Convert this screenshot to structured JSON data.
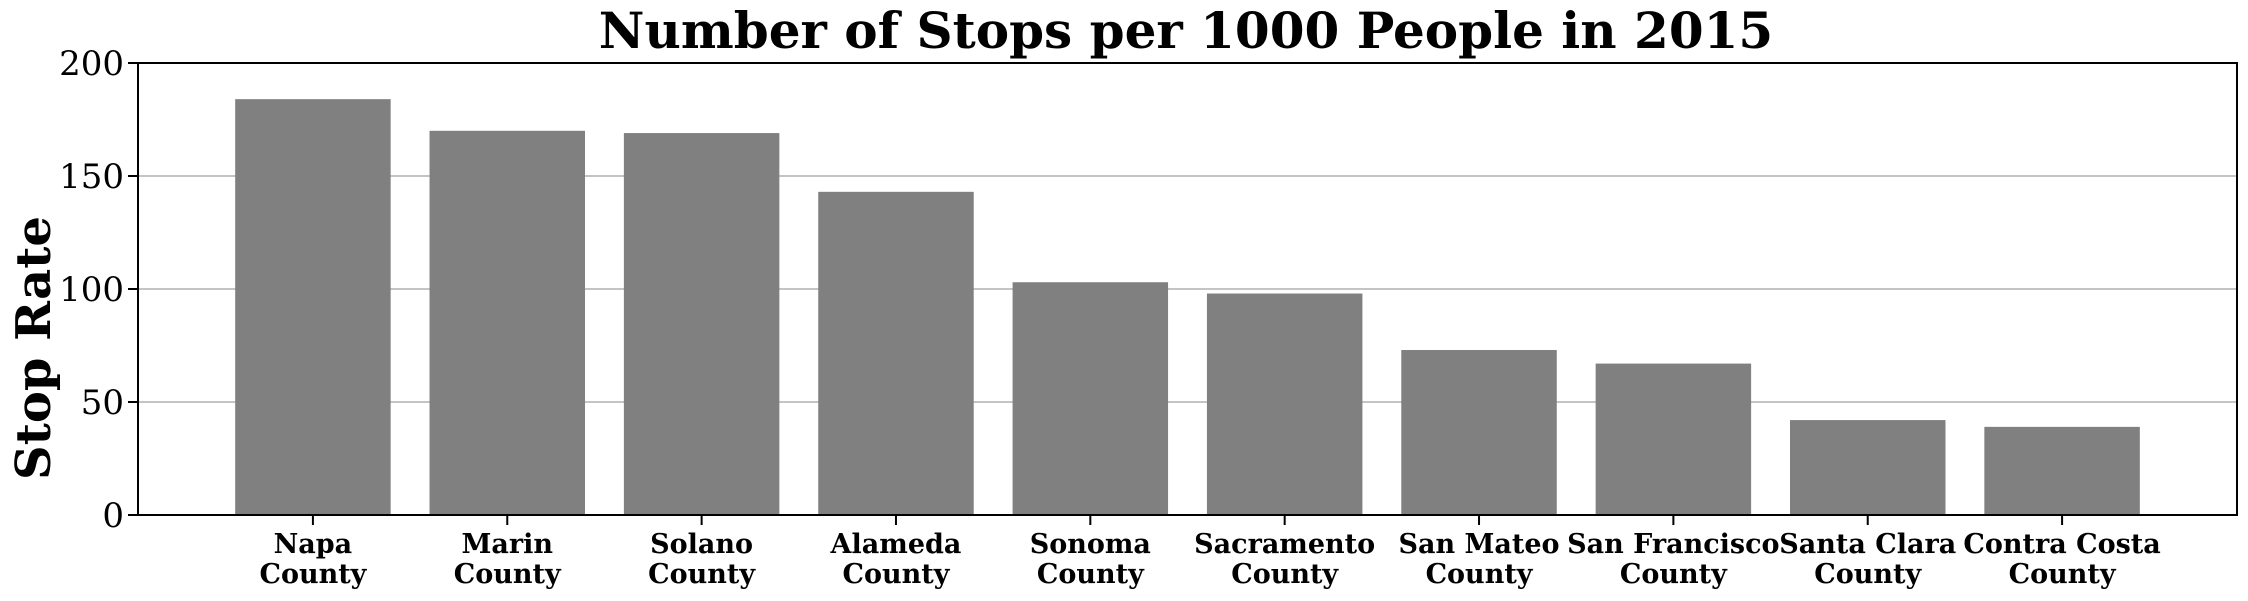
{
  "chart_data": {
    "type": "bar",
    "title": "Number of Stops per 1000 People in 2015",
    "xlabel": "",
    "ylabel": "Stop Rate",
    "ylim": [
      0,
      200
    ],
    "yticks": [
      "0",
      "50",
      "100",
      "150",
      "200"
    ],
    "grid": "horizontal",
    "categories": [
      [
        "Napa",
        "County"
      ],
      [
        "Marin",
        "County"
      ],
      [
        "Solano",
        "County"
      ],
      [
        "Alameda",
        "County"
      ],
      [
        "Sonoma",
        "County"
      ],
      [
        "Sacramento",
        "County"
      ],
      [
        "San Mateo",
        "County"
      ],
      [
        "San Francisco",
        "County"
      ],
      [
        "Santa Clara",
        "County"
      ],
      [
        "Contra Costa",
        "County"
      ]
    ],
    "values": [
      184,
      170,
      169,
      143,
      103,
      98,
      73,
      67,
      42,
      39
    ],
    "bar_color": "#808080"
  }
}
